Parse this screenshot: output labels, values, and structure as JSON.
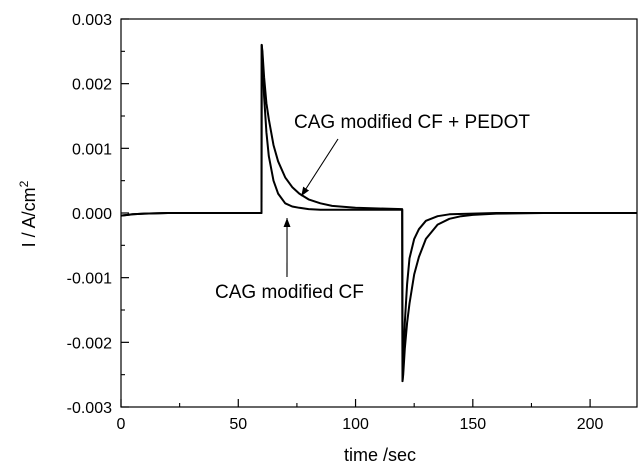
{
  "chart_data": {
    "type": "line",
    "title": "",
    "xlabel": "time /sec",
    "ylabel": {
      "main": "I / A/cm",
      "sup": "2"
    },
    "xlim": [
      0,
      220
    ],
    "ylim": [
      -0.003,
      0.003
    ],
    "xticks": [
      0,
      50,
      100,
      150,
      200
    ],
    "xtick_labels": [
      "0",
      "50",
      "100",
      "150",
      "200"
    ],
    "yticks": [
      -0.003,
      -0.002,
      -0.001,
      0.0,
      0.001,
      0.002,
      0.003
    ],
    "ytick_labels": [
      "-0.003",
      "-0.002",
      "-0.001",
      "0.000",
      "0.001",
      "0.002",
      "0.003"
    ],
    "grid": false,
    "legend": "none",
    "series": [
      {
        "x": [
          0,
          5,
          10,
          20,
          40,
          59.9,
          60,
          60.3,
          61,
          62,
          63,
          65,
          67,
          70,
          73,
          76,
          80,
          85,
          90,
          100,
          110,
          119.9,
          120,
          120.3,
          121,
          122,
          123,
          125,
          127,
          130,
          135,
          140,
          150,
          160,
          180,
          200,
          220
        ],
        "y": [
          -4e-05,
          -2e-05,
          -1e-05,
          0.0,
          0.0,
          0.0,
          0.0026,
          0.00245,
          0.0018,
          0.00125,
          0.00088,
          0.0005,
          0.0003,
          0.00015,
          0.0001,
          8e-05,
          6e-05,
          5e-05,
          5e-05,
          5e-05,
          5e-05,
          5e-05,
          -0.0026,
          -0.0024,
          -0.0017,
          -0.0011,
          -0.0007,
          -0.0004,
          -0.00025,
          -0.00012,
          -5e-05,
          -2e-05,
          -1e-05,
          0.0,
          0.0,
          0.0,
          0.0
        ]
      },
      {
        "x": [
          0,
          5,
          10,
          20,
          40,
          59.9,
          60,
          60.3,
          61,
          62,
          63,
          65,
          67,
          70,
          73,
          76,
          80,
          85,
          90,
          100,
          110,
          119.9,
          120,
          120.3,
          121,
          122,
          123,
          125,
          127,
          130,
          135,
          140,
          145,
          150,
          160,
          180,
          200,
          220
        ],
        "y": [
          -4e-05,
          -2e-05,
          -1e-05,
          0.0,
          0.0,
          0.0,
          0.0026,
          0.0025,
          0.0021,
          0.0017,
          0.00145,
          0.00105,
          0.0008,
          0.00055,
          0.0004,
          0.0003,
          0.00021,
          0.00015,
          0.00011,
          8e-05,
          7e-05,
          6e-05,
          -0.0026,
          -0.0025,
          -0.0021,
          -0.0017,
          -0.0014,
          -0.00095,
          -0.00068,
          -0.0004,
          -0.00018,
          -9e-05,
          -5e-05,
          -3e-05,
          -1e-05,
          0.0,
          0.0,
          0.0
        ]
      }
    ],
    "annotations": [
      {
        "text": "CAG modified CF + PEDOT",
        "arrow_x": 76,
        "arrow_y": 0.00023
      },
      {
        "text": "CAG modified CF",
        "arrow_x": 71,
        "arrow_y": -3e-05
      }
    ]
  }
}
